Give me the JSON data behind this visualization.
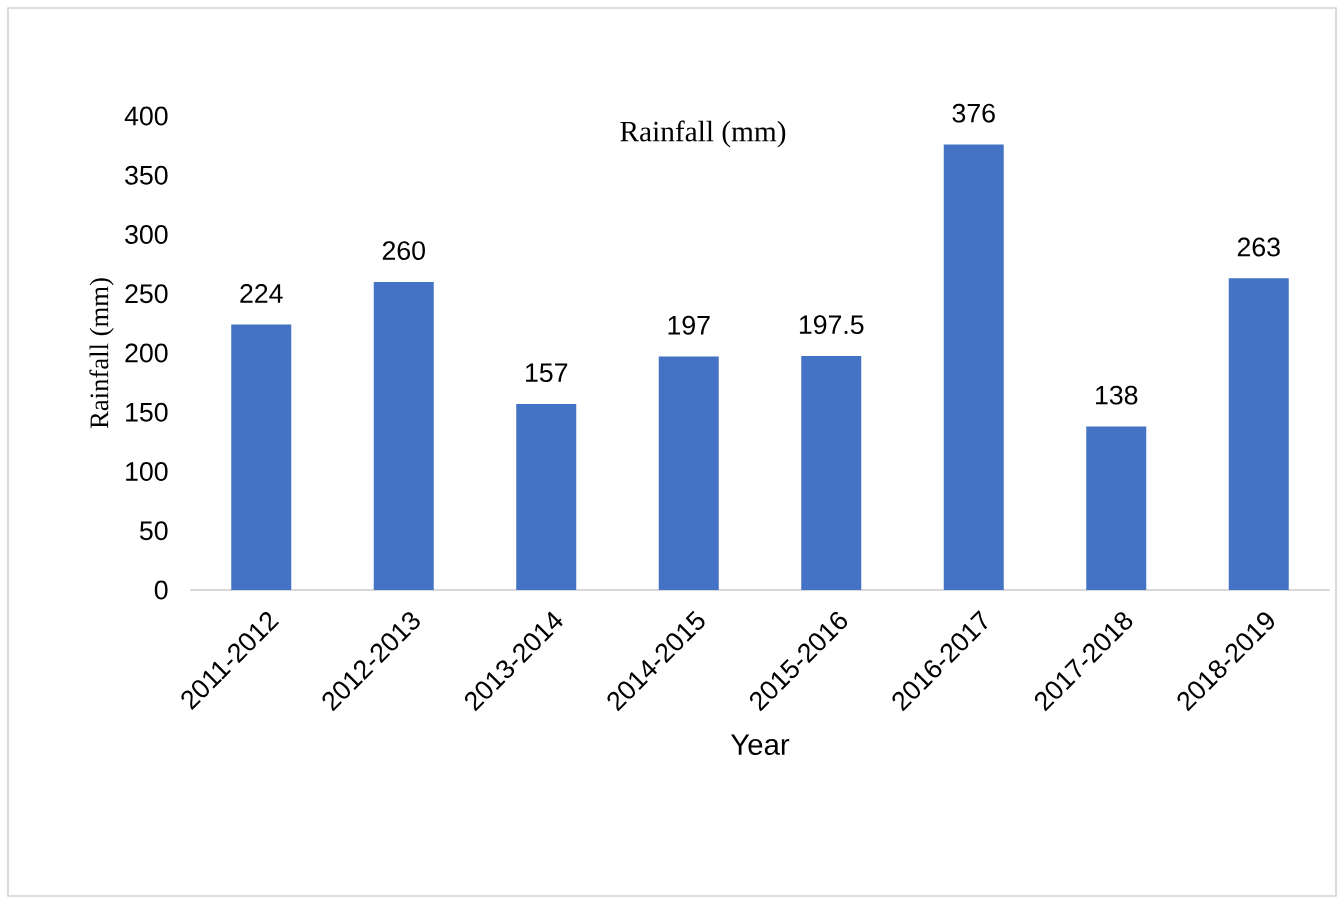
{
  "chart_data": {
    "type": "bar",
    "title": "Rainfall (mm)",
    "xlabel": "Year",
    "ylabel": "Rainfall (mm)",
    "categories": [
      "2011-2012",
      "2012-2013",
      "2013-2014",
      "2014-2015",
      "2015-2016",
      "2016-2017",
      "2017-2018",
      "2018-2019"
    ],
    "values": [
      224,
      260,
      157,
      197,
      197.5,
      376,
      138,
      263
    ],
    "color": "#4472c4",
    "ylim": [
      0,
      400
    ],
    "yticks": [
      0,
      50,
      100,
      150,
      200,
      250,
      300,
      350,
      400
    ],
    "grid": false,
    "data_labels": true
  }
}
